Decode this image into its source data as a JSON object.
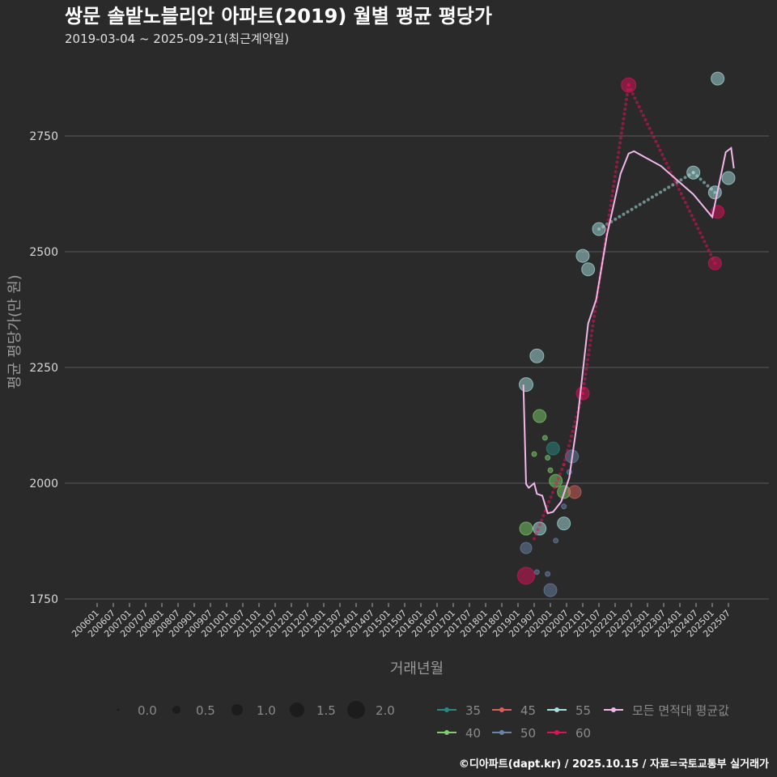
{
  "chart_data": {
    "type": "scatter",
    "title": "쌍문 솔밭노블리안 아파트(2019) 월별 평균 평당가",
    "subtitle": "2019-03-04 ~ 2025-09-21(최근계약일)",
    "xlabel": "거래년월",
    "ylabel": "평균 평당가(만 원)",
    "ylim": [
      1700,
      2900
    ],
    "yticks": [
      1750,
      2000,
      2250,
      2500,
      2750
    ],
    "xticks": [
      "200601",
      "200607",
      "200701",
      "200707",
      "200801",
      "200807",
      "200901",
      "200907",
      "201001",
      "201007",
      "201101",
      "201107",
      "201201",
      "201207",
      "201301",
      "201307",
      "201401",
      "201407",
      "201501",
      "201507",
      "201601",
      "201607",
      "201701",
      "201707",
      "201801",
      "201807",
      "201901",
      "201907",
      "202001",
      "202007",
      "202101",
      "202107",
      "202201",
      "202207",
      "202301",
      "202307",
      "202401",
      "202407",
      "202501",
      "202507"
    ],
    "grid": true,
    "size_legend": {
      "values": [
        "0.0",
        "0.5",
        "1.0",
        "1.5",
        "2.0"
      ]
    },
    "series": [
      {
        "name": "35",
        "color": "#2a8a80",
        "points": [
          [
            "2020-02",
            2075,
            1.2
          ]
        ],
        "trend": []
      },
      {
        "name": "40",
        "color": "#7ccf6a",
        "points": [
          [
            "2019-09",
            2145,
            1.2
          ],
          [
            "2019-04",
            1902,
            1.2
          ],
          [
            "2020-03",
            2005,
            1.2
          ],
          [
            "2020-06",
            1981,
            1.2
          ],
          [
            "2019-11",
            2098,
            0.2
          ],
          [
            "2019-07",
            2063,
            0.2
          ],
          [
            "2020-01",
            2028,
            0.2
          ],
          [
            "2019-12",
            2055,
            0.2
          ]
        ],
        "trend": []
      },
      {
        "name": "45",
        "color": "#d9605a",
        "points": [
          [
            "2020-10",
            1981,
            1.2
          ]
        ],
        "trend": []
      },
      {
        "name": "50",
        "color": "#6a84a8",
        "points": [
          [
            "2020-09",
            2058,
            1.2
          ],
          [
            "2019-04",
            1860,
            1.0
          ],
          [
            "2020-01",
            1769,
            1.2
          ],
          [
            "2019-08",
            1808,
            0.2
          ],
          [
            "2019-12",
            1804,
            0.2
          ],
          [
            "2020-03",
            1876,
            0.2
          ],
          [
            "2020-06",
            1950,
            0.2
          ],
          [
            "2020-08",
            2024,
            0.2
          ]
        ],
        "trend": []
      },
      {
        "name": "55",
        "color": "#a8e0e0",
        "points": [
          [
            "2019-04",
            2213,
            1.3
          ],
          [
            "2019-08",
            2275,
            1.3
          ],
          [
            "2021-07",
            2549,
            1.2
          ],
          [
            "2021-01",
            2491,
            1.2
          ],
          [
            "2021-03",
            2462,
            1.2
          ],
          [
            "2024-06",
            2671,
            1.2
          ],
          [
            "2025-02",
            2628,
            1.2
          ],
          [
            "2025-03",
            2874,
            1.2
          ],
          [
            "2025-07",
            2659,
            1.2
          ],
          [
            "2020-06",
            1913,
            1.2
          ],
          [
            "2019-09",
            1902,
            1.2
          ]
        ],
        "trend": [
          [
            "2021-07",
            2549
          ],
          [
            "2024-06",
            2671
          ],
          [
            "2025-02",
            2628
          ]
        ]
      },
      {
        "name": "60",
        "color": "#e0105a",
        "points": [
          [
            "2019-04",
            1800,
            1.7
          ],
          [
            "2022-06",
            2860,
            1.4
          ],
          [
            "2025-02",
            2475,
            1.2
          ],
          [
            "2025-03",
            2586,
            1.2
          ],
          [
            "2021-01",
            2194,
            1.2
          ]
        ],
        "trend": [
          [
            "2019-07",
            1880
          ],
          [
            "2020-06",
            2040
          ],
          [
            "2021-01",
            2194
          ],
          [
            "2022-06",
            2860
          ],
          [
            "2025-02",
            2475
          ]
        ]
      }
    ],
    "average": {
      "name": "모든 면적대 평균값",
      "color": "#f2b8ec",
      "points": [
        [
          "2019-03",
          2213
        ],
        [
          "2019-04",
          1998
        ],
        [
          "2019-05",
          1990
        ],
        [
          "2019-07",
          2000
        ],
        [
          "2019-08",
          1977
        ],
        [
          "2019-10",
          1973
        ],
        [
          "2019-12",
          1935
        ],
        [
          "2020-02",
          1938
        ],
        [
          "2020-05",
          1960
        ],
        [
          "2020-08",
          2012
        ],
        [
          "2020-11",
          2135
        ],
        [
          "2021-03",
          2345
        ],
        [
          "2021-06",
          2397
        ],
        [
          "2021-10",
          2537
        ],
        [
          "2022-03",
          2668
        ],
        [
          "2022-06",
          2712
        ],
        [
          "2022-08",
          2717
        ],
        [
          "2023-06",
          2685
        ],
        [
          "2024-06",
          2624
        ],
        [
          "2025-01",
          2575
        ],
        [
          "2025-06",
          2715
        ],
        [
          "2025-08",
          2724
        ],
        [
          "2025-09",
          2680
        ]
      ]
    },
    "footer": "©디아파트(dapt.kr) / 2025.10.15 / 자료=국토교통부 실거래가"
  }
}
